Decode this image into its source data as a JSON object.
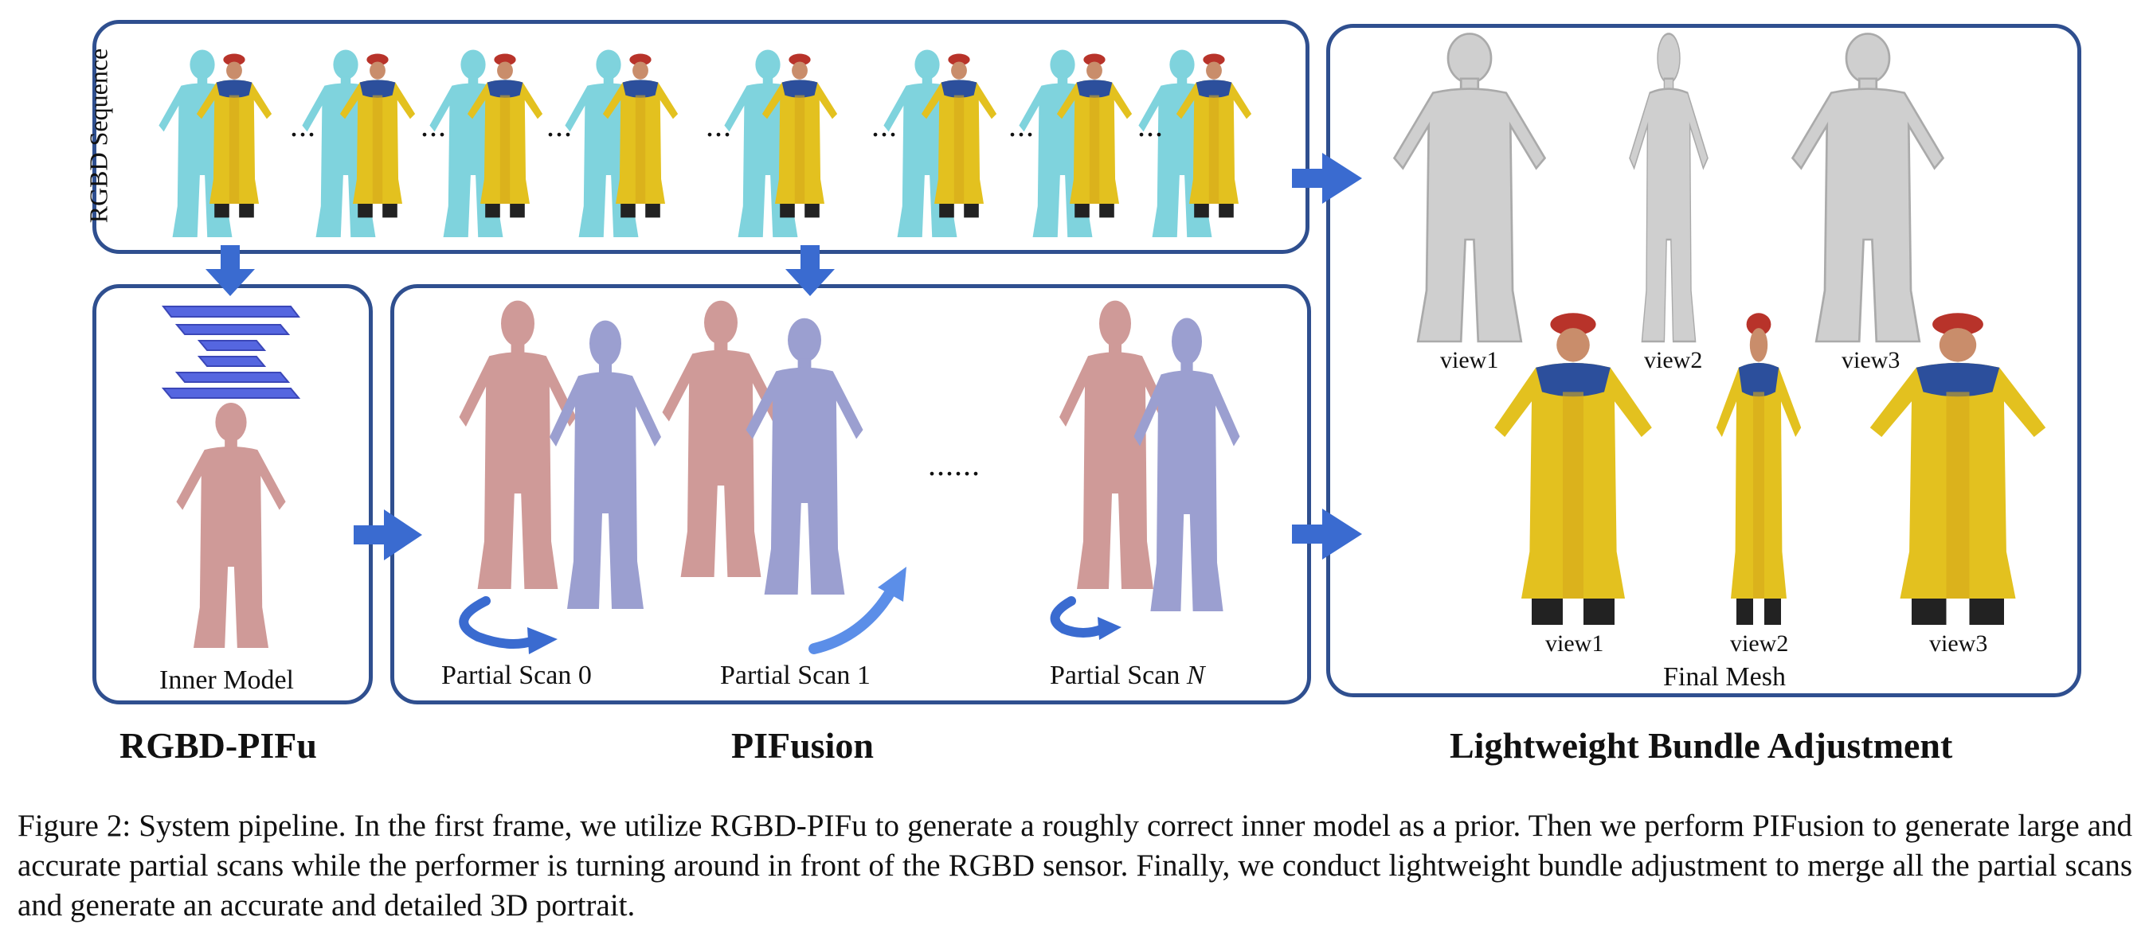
{
  "rgbd_sequence_label": "RGBD Sequence",
  "sequence_separator": "...",
  "scan_separator": "......",
  "inner_model_label": "Inner Model",
  "partial_scans": [
    {
      "label": "Partial Scan 0"
    },
    {
      "label": "Partial Scan 1"
    },
    {
      "label": "Partial Scan ",
      "index": "N"
    }
  ],
  "views": [
    "view1",
    "view2",
    "view3"
  ],
  "final_mesh_label": "Final Mesh",
  "stages": [
    "RGBD-PIFu",
    "PIFusion",
    "Lightweight Bundle Adjustment"
  ],
  "caption": "Figure 2: System pipeline. In the first frame, we utilize RGBD-PIFu to generate a roughly correct inner model as a prior. Then we perform PIFusion to generate large and accurate partial scans while the performer is turning around in front of the RGBD sensor. Finally, we conduct lightweight bundle adjustment to merge all the partial scans and generate an accurate and detailed 3D portrait.",
  "colors": {
    "panel_border": "#2f4f8f",
    "arrow": "#3a6bd0",
    "inner_model": "#cf9a98",
    "partial_scan": "#9b9fd0",
    "cyan_figure": "#7fd3dd",
    "yellow_robe": "#e3c11f",
    "gray_mesh": "#cfcfcf",
    "hat_red": "#b8332a"
  }
}
